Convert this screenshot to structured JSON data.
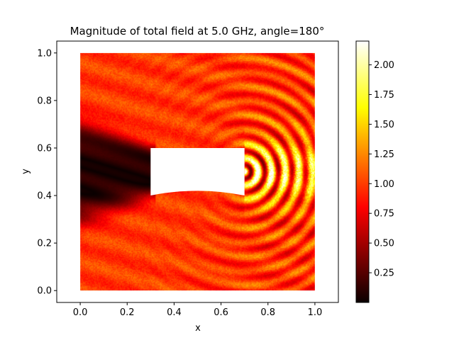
{
  "chart_data": {
    "type": "heatmap",
    "title": "Magnitude of total field at 5.0 GHz, angle=180°",
    "xlabel": "x",
    "ylabel": "y",
    "xlim": [
      -0.1,
      1.1
    ],
    "ylim": [
      -0.05,
      1.05
    ],
    "x_ticks": [
      "0.0",
      "0.2",
      "0.4",
      "0.6",
      "0.8",
      "1.0"
    ],
    "y_ticks": [
      "0.0",
      "0.2",
      "0.4",
      "0.6",
      "0.8",
      "1.0"
    ],
    "domain": {
      "x": [
        0.0,
        1.0
      ],
      "y": [
        0.0,
        1.0
      ]
    },
    "obstacle": {
      "x": [
        0.3,
        0.7
      ],
      "y_top": 0.6,
      "y_bottom_edges": 0.4,
      "y_bottom_center": 0.42,
      "bottom_shape": "concave arc"
    },
    "colormap": "hot",
    "colorbar": {
      "range": [
        0.0,
        2.2
      ],
      "ticks": [
        "0.25",
        "0.50",
        "0.75",
        "1.00",
        "1.25",
        "1.50",
        "1.75",
        "2.00"
      ]
    },
    "grid": false
  }
}
